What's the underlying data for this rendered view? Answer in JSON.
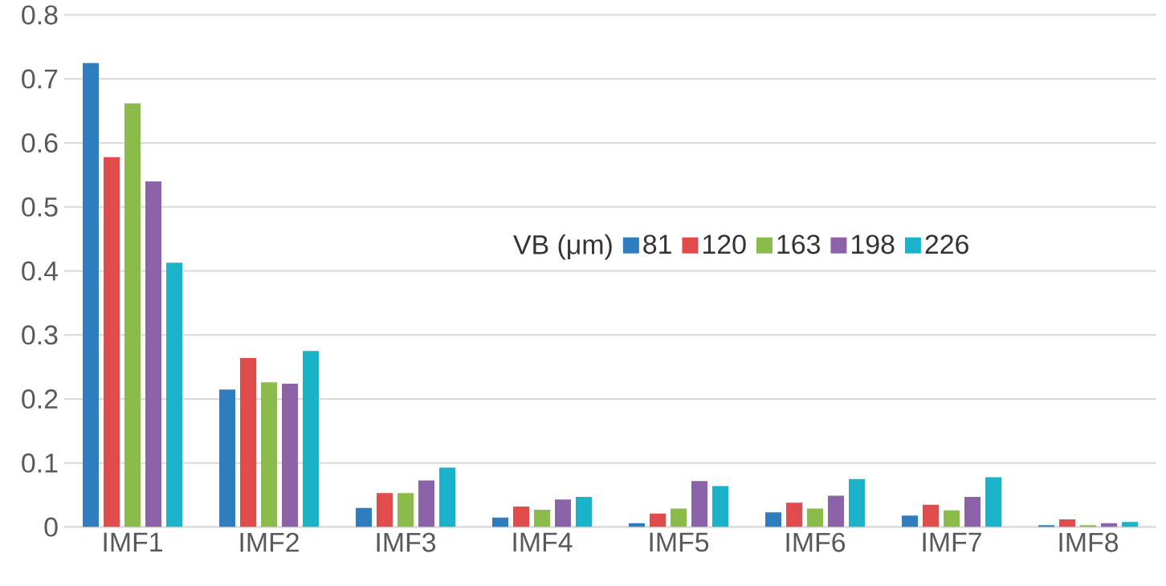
{
  "chart_data": {
    "type": "bar",
    "categories": [
      "IMF1",
      "IMF2",
      "IMF3",
      "IMF4",
      "IMF5",
      "IMF6",
      "IMF7",
      "IMF8"
    ],
    "legend_title": "VB (μm)",
    "legend": "right",
    "grid": "y",
    "ylim": [
      0,
      0.8
    ],
    "yticks": [
      0,
      0.1,
      0.2,
      0.3,
      0.4,
      0.5,
      0.6,
      0.7,
      0.8
    ],
    "series": [
      {
        "name": "81",
        "color": "#2e7ebf",
        "values": [
          0.725,
          0.215,
          0.03,
          0.015,
          0.006,
          0.023,
          0.018,
          0.003
        ]
      },
      {
        "name": "120",
        "color": "#e04b4b",
        "values": [
          0.578,
          0.264,
          0.053,
          0.032,
          0.021,
          0.038,
          0.035,
          0.012
        ]
      },
      {
        "name": "163",
        "color": "#8bbb4a",
        "values": [
          0.662,
          0.226,
          0.053,
          0.027,
          0.029,
          0.029,
          0.026,
          0.003
        ]
      },
      {
        "name": "198",
        "color": "#8c62a8",
        "values": [
          0.54,
          0.224,
          0.073,
          0.043,
          0.072,
          0.049,
          0.047,
          0.006
        ]
      },
      {
        "name": "226",
        "color": "#1ab3c9",
        "values": [
          0.413,
          0.275,
          0.093,
          0.047,
          0.064,
          0.075,
          0.078,
          0.008
        ]
      }
    ]
  }
}
